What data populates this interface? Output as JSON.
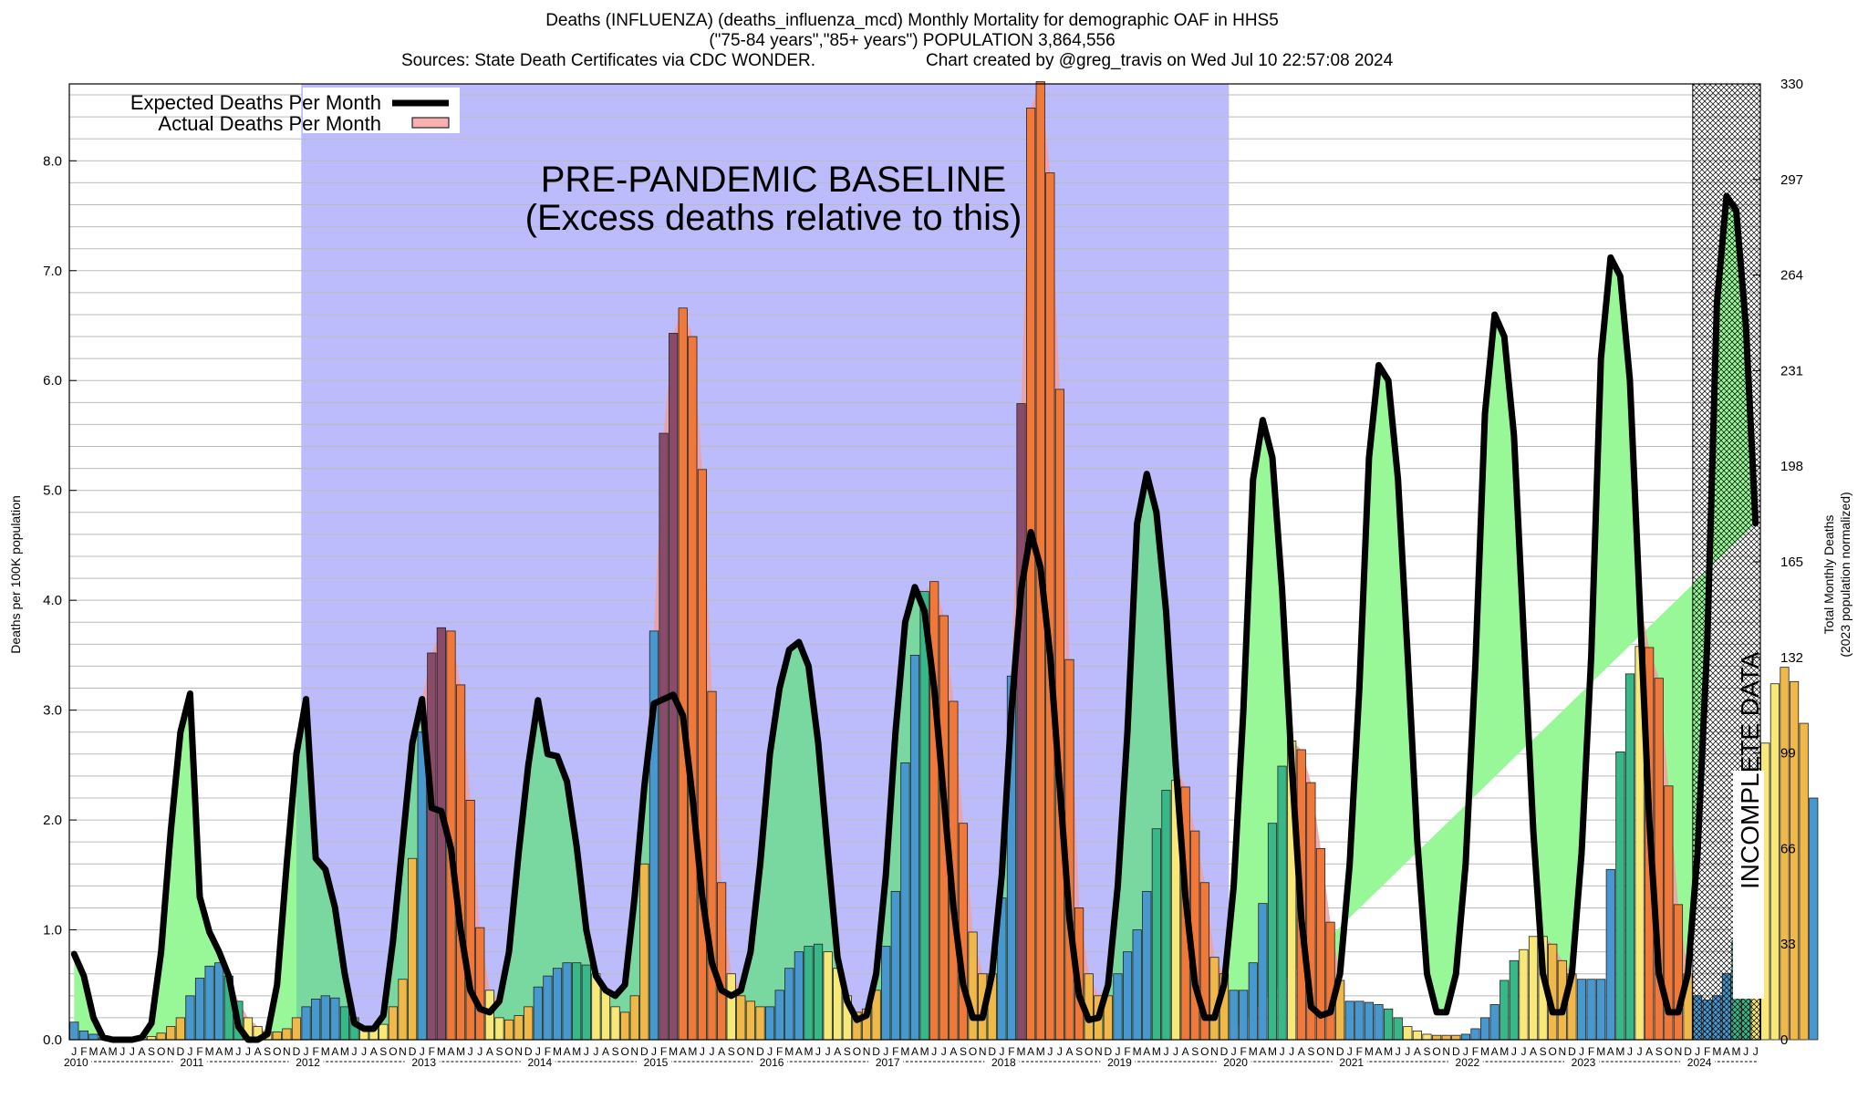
{
  "header": {
    "title_line1": "Deaths (INFLUENZA) (deaths_influenza_mcd) Monthly Mortality for demographic OAF in HHS5",
    "title_line2": "(\"75-84 years\",\"85+ years\") POPULATION 3,864,556",
    "sources": "Sources: State Death Certificates via CDC WONDER.",
    "credit": "Chart created by @greg_travis on Wed Jul 10 22:57:08 2024"
  },
  "legend": {
    "expected_label": "Expected Deaths Per Month",
    "actual_label": "Actual Deaths Per Month",
    "position": "top-left"
  },
  "annotations": {
    "baseline_line1": "PRE-PANDEMIC BASELINE",
    "baseline_line2": "(Excess deaths relative to this)",
    "incomplete": "INCOMPLETE DATA"
  },
  "colors": {
    "baseline_region": "#bcbcfc",
    "expected_fill": "#98f898",
    "expected_fill_over_baseline": "#78d8a0",
    "excess_fill": "#f0a0a0",
    "expected_line": "#000000",
    "bar_summer": "#f8e878",
    "bar_fall": "#f0b848",
    "bar_winter": "#4898d0",
    "bar_spring": "#38b888",
    "bar_peak": "#f07838",
    "bar_peak_dark": "#8a4a6a",
    "incomplete_hatch": "#000000"
  },
  "chart_data": {
    "type": "bar",
    "title": "Deaths (INFLUENZA) (deaths_influenza_mcd) Monthly Mortality for demographic OAF in HHS5",
    "ylabel": "Deaths per 100K population",
    "y2label_line1": "Total Monthly Deaths",
    "y2label_line2": "(2023 population normalized)",
    "xlabel": "",
    "ylim": [
      0,
      8.7
    ],
    "yticks": [
      "0.0",
      "1.0",
      "2.0",
      "3.0",
      "4.0",
      "5.0",
      "6.0",
      "7.0",
      "8.0"
    ],
    "y2ticks": [
      "0",
      "33",
      "66",
      "99",
      "132",
      "165",
      "198",
      "231",
      "264",
      "297",
      "330"
    ],
    "start": "2010-01",
    "month_letters": [
      "J",
      "F",
      "M",
      "A",
      "M",
      "J",
      "J",
      "A",
      "S",
      "O",
      "N",
      "D"
    ],
    "years": [
      "2010",
      "2011",
      "2012",
      "2013",
      "2014",
      "2015",
      "2016",
      "2017",
      "2018",
      "2019",
      "2020",
      "2021",
      "2022",
      "2023",
      "2024"
    ],
    "baseline_period": [
      "2012-01",
      "2019-12"
    ],
    "incomplete_period": [
      "2024-01",
      "2024-05"
    ],
    "grid": true,
    "series": [
      {
        "name": "Actual Deaths Per Month",
        "values": [
          0.16,
          0.08,
          0.05,
          0.02,
          0.01,
          0.01,
          0.01,
          0.02,
          0.03,
          0.06,
          0.12,
          0.2,
          0.4,
          0.56,
          0.67,
          0.7,
          0.58,
          0.35,
          0.2,
          0.12,
          0.07,
          0.07,
          0.1,
          0.2,
          0.3,
          0.37,
          0.4,
          0.38,
          0.3,
          0.2,
          0.12,
          0.1,
          0.14,
          0.3,
          0.55,
          1.65,
          2.8,
          3.52,
          3.75,
          3.72,
          3.23,
          2.18,
          1.02,
          0.45,
          0.2,
          0.18,
          0.22,
          0.3,
          0.48,
          0.58,
          0.65,
          0.7,
          0.7,
          0.68,
          0.6,
          0.45,
          0.3,
          0.25,
          0.4,
          1.6,
          3.72,
          5.52,
          6.43,
          6.66,
          6.4,
          5.19,
          3.17,
          1.43,
          0.6,
          0.4,
          0.35,
          0.3,
          0.3,
          0.45,
          0.65,
          0.8,
          0.85,
          0.87,
          0.8,
          0.65,
          0.4,
          0.25,
          0.28,
          0.45,
          0.85,
          1.35,
          2.52,
          3.5,
          4.08,
          4.17,
          3.86,
          3.08,
          1.97,
          0.98,
          0.6,
          0.6,
          1.29,
          3.31,
          5.79,
          8.48,
          8.72,
          7.89,
          5.92,
          3.46,
          1.2,
          0.6,
          0.4,
          0.4,
          0.6,
          0.8,
          1.0,
          1.35,
          1.92,
          2.27,
          2.36,
          2.3,
          1.9,
          1.43,
          0.75,
          0.6,
          0.45,
          0.45,
          0.7,
          1.24,
          1.97,
          2.49,
          2.72,
          2.64,
          2.34,
          1.74,
          1.07,
          0.54,
          0.35,
          0.35,
          0.34,
          0.32,
          0.28,
          0.2,
          0.12,
          0.08,
          0.05,
          0.04,
          0.04,
          0.04,
          0.05,
          0.1,
          0.2,
          0.32,
          0.54,
          0.72,
          0.82,
          0.94,
          0.94,
          0.87,
          0.72,
          0.6,
          0.55,
          0.55,
          0.55,
          1.55,
          2.62,
          3.33,
          3.58,
          3.57,
          3.29,
          2.31,
          1.23,
          0.6,
          0.4,
          0.36,
          0.4,
          0.6,
          0.9,
          1.24,
          1.99,
          2.7,
          3.24,
          3.39,
          3.26,
          2.88,
          2.2
        ]
      },
      {
        "name": "Expected Deaths Per Month",
        "values": [
          0.78,
          0.58,
          0.2,
          0.02,
          0.0,
          0.0,
          0.0,
          0.02,
          0.15,
          0.8,
          1.9,
          2.8,
          3.15,
          1.3,
          0.98,
          0.8,
          0.58,
          0.12,
          0.0,
          0.0,
          0.05,
          0.5,
          1.6,
          2.6,
          3.1,
          1.65,
          1.55,
          1.2,
          0.6,
          0.15,
          0.1,
          0.1,
          0.22,
          0.9,
          1.8,
          2.7,
          3.1,
          2.11,
          2.08,
          1.74,
          1.0,
          0.45,
          0.28,
          0.25,
          0.35,
          0.8,
          1.7,
          2.5,
          3.09,
          2.6,
          2.58,
          2.35,
          1.76,
          1.0,
          0.58,
          0.45,
          0.4,
          0.5,
          1.3,
          2.3,
          3.06,
          3.1,
          3.14,
          2.95,
          2.2,
          1.3,
          0.7,
          0.45,
          0.4,
          0.45,
          0.8,
          1.6,
          2.6,
          3.2,
          3.55,
          3.62,
          3.4,
          2.7,
          1.7,
          0.75,
          0.35,
          0.18,
          0.22,
          0.6,
          1.5,
          2.8,
          3.8,
          4.12,
          3.9,
          3.2,
          2.2,
          1.2,
          0.5,
          0.2,
          0.2,
          0.6,
          1.5,
          3.0,
          4.1,
          4.62,
          4.3,
          3.5,
          2.3,
          1.1,
          0.4,
          0.18,
          0.2,
          0.5,
          1.4,
          2.8,
          4.7,
          5.15,
          4.8,
          3.9,
          2.5,
          1.3,
          0.5,
          0.2,
          0.2,
          0.5,
          1.4,
          3.0,
          5.1,
          5.64,
          5.3,
          4.1,
          2.5,
          1.1,
          0.3,
          0.22,
          0.25,
          0.6,
          1.6,
          3.2,
          5.3,
          6.14,
          6.0,
          5.1,
          3.5,
          1.8,
          0.6,
          0.25,
          0.25,
          0.6,
          1.6,
          3.4,
          5.7,
          6.6,
          6.4,
          5.5,
          3.7,
          1.9,
          0.6,
          0.25,
          0.25,
          0.6,
          1.7,
          3.5,
          6.2,
          7.12,
          6.95,
          6.0,
          4.0,
          2.0,
          0.6,
          0.25,
          0.25,
          0.6,
          1.7,
          3.6,
          6.7,
          7.68,
          7.55,
          6.5,
          4.7
        ]
      }
    ]
  }
}
